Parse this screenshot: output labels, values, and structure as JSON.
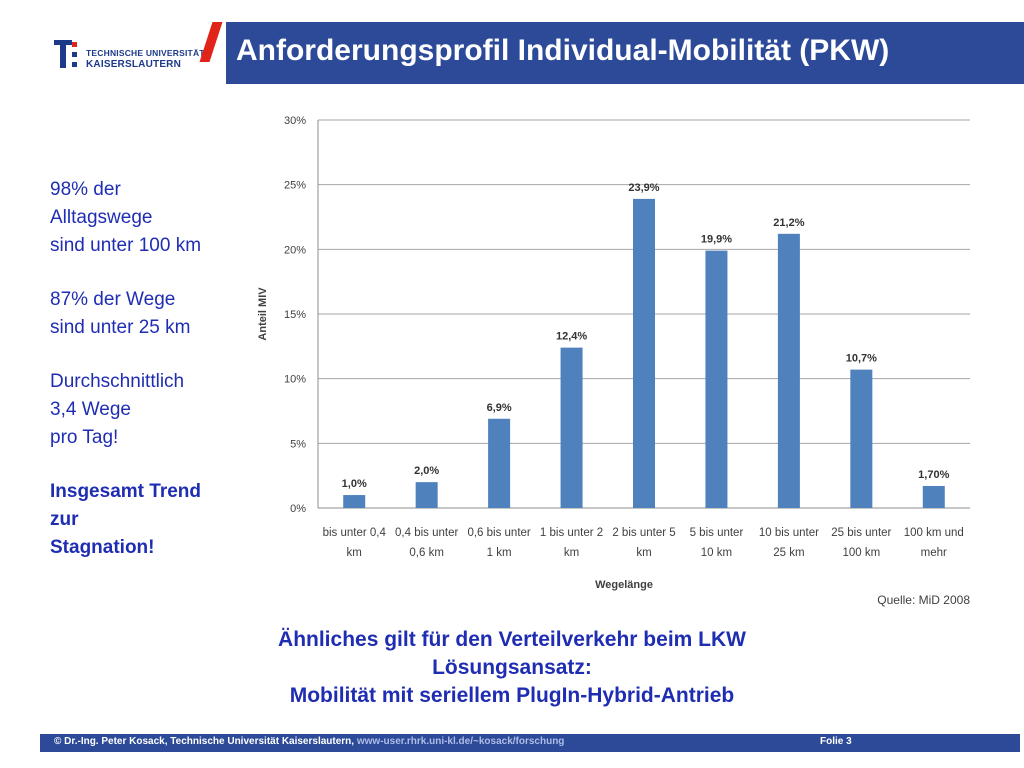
{
  "logo": {
    "line1": "Technische Universität",
    "line2": "Kaiserslautern"
  },
  "title": "Anforderungsprofil Individual-Mobilität (PKW)",
  "side_notes": [
    {
      "text": "98% der\nAlltagswege\nsind unter 100 km",
      "bold": false
    },
    {
      "text": "87% der Wege\nsind unter 25 km",
      "bold": false
    },
    {
      "text": "Durchschnittlich\n3,4 Wege\npro Tag!",
      "bold": false
    },
    {
      "text": "Insgesamt Trend\nzur\nStagnation!",
      "bold": true
    }
  ],
  "chart_data": {
    "type": "bar",
    "categories": [
      "bis unter 0,4 km",
      "0,4 bis unter 0,6 km",
      "0,6 bis unter 1 km",
      "1 bis unter 2 km",
      "2 bis unter 5 km",
      "5 bis unter 10 km",
      "10 bis unter 25 km",
      "25 bis unter 100 km",
      "100 km und mehr"
    ],
    "category_lines": [
      [
        "bis unter 0,4",
        "km"
      ],
      [
        "0,4 bis unter",
        "0,6 km"
      ],
      [
        "0,6 bis unter",
        "1 km"
      ],
      [
        "1 bis unter 2",
        "km"
      ],
      [
        "2 bis unter 5",
        "km"
      ],
      [
        "5 bis unter",
        "10 km"
      ],
      [
        "10 bis unter",
        "25 km"
      ],
      [
        "25 bis unter",
        "100 km"
      ],
      [
        "100 km und",
        "mehr"
      ]
    ],
    "values": [
      1.0,
      2.0,
      6.9,
      12.4,
      23.9,
      19.9,
      21.2,
      10.7,
      1.7
    ],
    "value_labels": [
      "1,0%",
      "2,0%",
      "6,9%",
      "12,4%",
      "23,9%",
      "19,9%",
      "21,2%",
      "10,7%",
      "1,70%"
    ],
    "yticks": [
      0,
      5,
      10,
      15,
      20,
      25,
      30
    ],
    "ytick_labels": [
      "0%",
      "5%",
      "10%",
      "15%",
      "20%",
      "25%",
      "30%"
    ],
    "ylim": [
      0,
      30
    ],
    "xlabel": "Wegelänge",
    "ylabel": "Anteil MIV",
    "source": "Quelle: MiD 2008",
    "grid": true,
    "bar_color": "#4f81bd"
  },
  "bottom_lines": [
    "Ähnliches gilt für den Verteilverkehr beim LKW",
    "Lösungsansatz:",
    "Mobilität mit seriellem PlugIn-Hybrid-Antrieb"
  ],
  "footer": {
    "text": "© Dr.-Ing. Peter Kosack, Technische Universität Kaiserslautern, ",
    "link": "www-user.rhrk.uni-kl.de/~kosack/forschung",
    "page": "Folie 3"
  }
}
